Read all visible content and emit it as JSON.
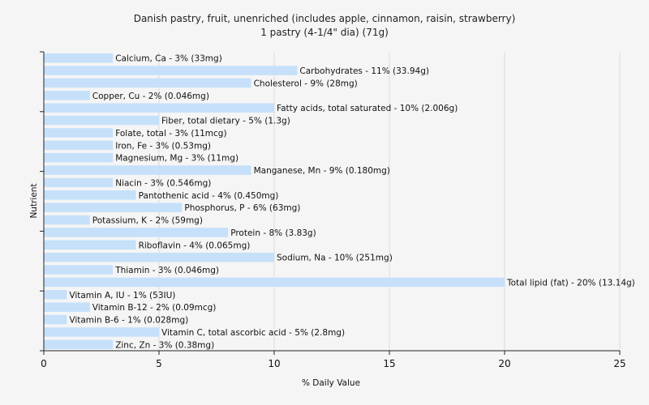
{
  "chart_data": {
    "type": "bar",
    "orientation": "horizontal",
    "title": "Danish pastry, fruit, unenriched (includes apple, cinnamon, raisin, strawberry)",
    "subtitle": "1 pastry (4-1/4\" dia) (71g)",
    "xlabel": "% Daily Value",
    "ylabel": "Nutrient",
    "xlim": [
      0,
      25
    ],
    "xticks": [
      "0",
      "5",
      "10",
      "15",
      "20",
      "25"
    ],
    "grid": true,
    "bar_color": "#c6e0fa",
    "categories": [
      "Calcium, Ca",
      "Carbohydrates",
      "Cholesterol",
      "Copper, Cu",
      "Fatty acids, total saturated",
      "Fiber, total dietary",
      "Folate, total",
      "Iron, Fe",
      "Magnesium, Mg",
      "Manganese, Mn",
      "Niacin",
      "Pantothenic acid",
      "Phosphorus, P",
      "Potassium, K",
      "Protein",
      "Riboflavin",
      "Sodium, Na",
      "Thiamin",
      "Total lipid (fat)",
      "Vitamin A, IU",
      "Vitamin B-12",
      "Vitamin B-6",
      "Vitamin C, total ascorbic acid",
      "Zinc, Zn"
    ],
    "values": [
      3,
      11,
      9,
      2,
      10,
      5,
      3,
      3,
      3,
      9,
      3,
      4,
      6,
      2,
      8,
      4,
      10,
      3,
      20,
      1,
      2,
      1,
      5,
      3
    ],
    "labels": [
      "Calcium, Ca - 3% (33mg)",
      "Carbohydrates - 11% (33.94g)",
      "Cholesterol - 9% (28mg)",
      "Copper, Cu - 2% (0.046mg)",
      "Fatty acids, total saturated - 10% (2.006g)",
      "Fiber, total dietary - 5% (1.3g)",
      "Folate, total - 3% (11mcg)",
      "Iron, Fe - 3% (0.53mg)",
      "Magnesium, Mg - 3% (11mg)",
      "Manganese, Mn - 9% (0.180mg)",
      "Niacin - 3% (0.546mg)",
      "Pantothenic acid - 4% (0.450mg)",
      "Phosphorus, P - 6% (63mg)",
      "Potassium, K - 2% (59mg)",
      "Protein - 8% (3.83g)",
      "Riboflavin - 4% (0.065mg)",
      "Sodium, Na - 10% (251mg)",
      "Thiamin - 3% (0.046mg)",
      "Total lipid (fat) - 20% (13.14g)",
      "Vitamin A, IU - 1% (53IU)",
      "Vitamin B-12 - 2% (0.09mcg)",
      "Vitamin B-6 - 1% (0.028mg)",
      "Vitamin C, total ascorbic acid - 5% (2.8mg)",
      "Zinc, Zn - 3% (0.38mg)"
    ]
  }
}
